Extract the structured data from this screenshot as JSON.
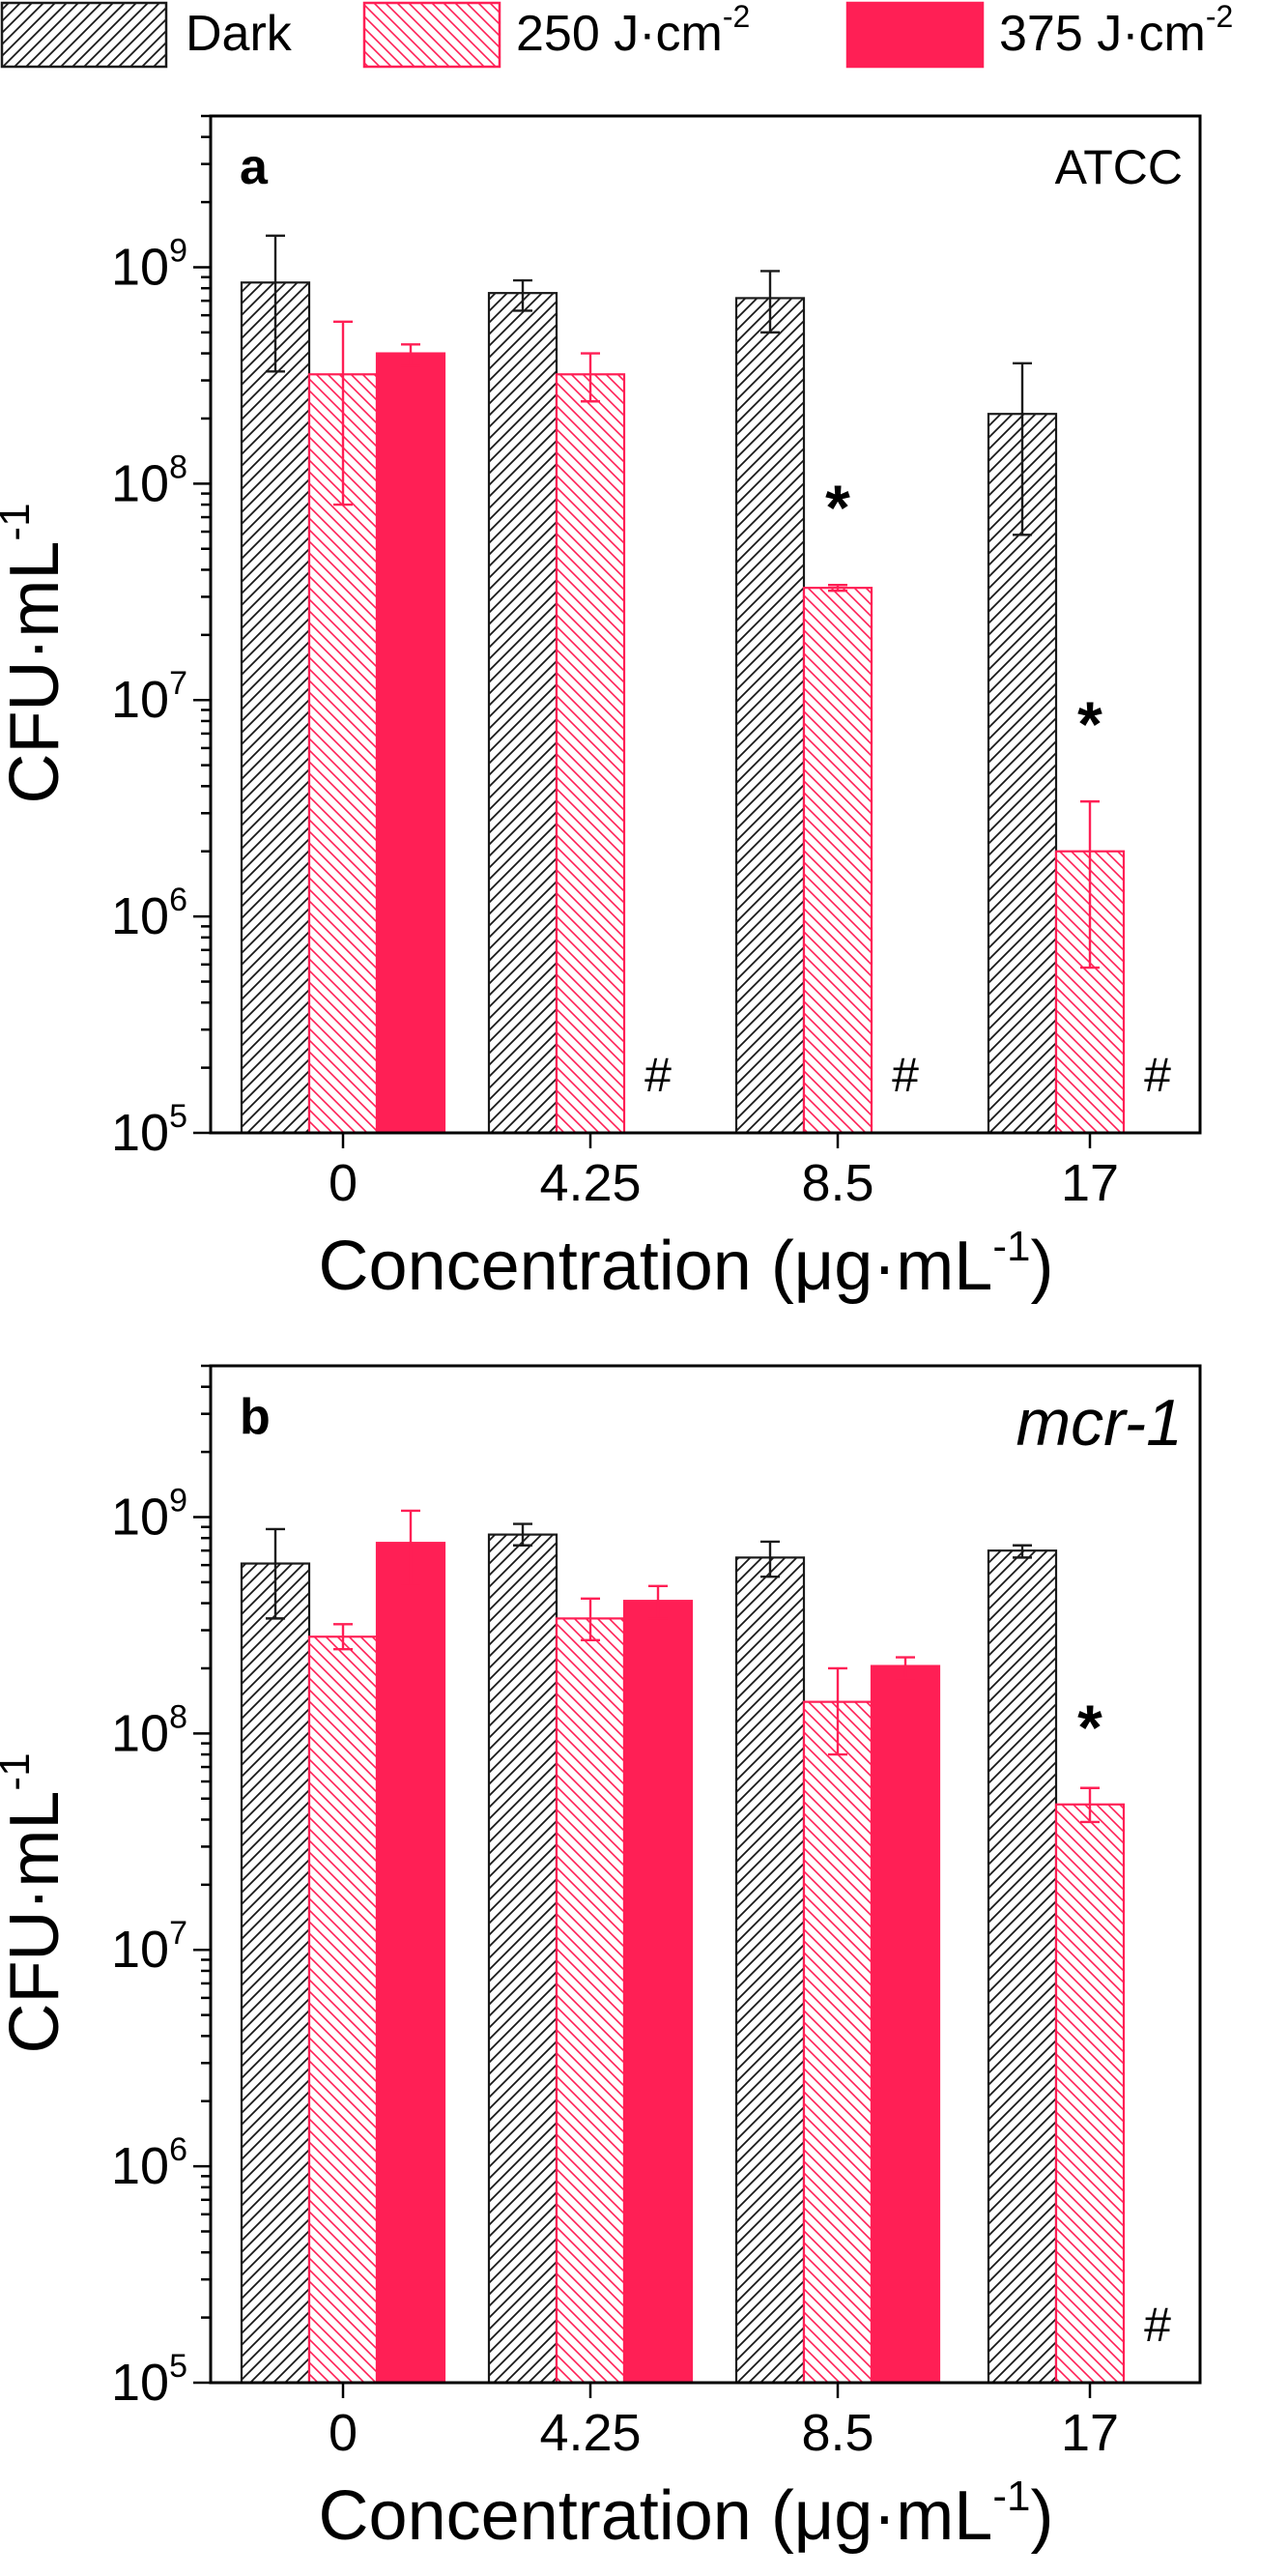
{
  "legend": {
    "items": [
      {
        "label": "Dark",
        "sup": "",
        "style": "hatch-dark"
      },
      {
        "label": "250 J·cm",
        "sup": "-2",
        "style": "hatch-red"
      },
      {
        "label": "375 J·cm",
        "sup": "-2",
        "style": "solid-red"
      }
    ]
  },
  "colors": {
    "dark": "#1a1a1a",
    "red": "#ff1f55"
  },
  "chart_data": [
    {
      "type": "bar",
      "panel_label": "a",
      "panel_title": "ATCC",
      "title_italic": false,
      "xlabel": "Concentration (μg·mL",
      "xlabel_sup": "-1",
      "xlabel_close": ")",
      "ylabel": "CFU·mL",
      "ylabel_sup": "-1",
      "yscale": "log",
      "ylim": [
        100000,
        5000000000
      ],
      "yticks": [
        {
          "value": 100000,
          "base": "10",
          "exp": "5"
        },
        {
          "value": 1000000,
          "base": "10",
          "exp": "6"
        },
        {
          "value": 10000000,
          "base": "10",
          "exp": "7"
        },
        {
          "value": 100000000,
          "base": "10",
          "exp": "8"
        },
        {
          "value": 1000000000,
          "base": "10",
          "exp": "9"
        }
      ],
      "categories": [
        "0",
        "4.25",
        "8.5",
        "17"
      ],
      "series": [
        {
          "name": "Dark",
          "values": [
            850000000,
            760000000,
            720000000,
            210000000
          ],
          "err_low": [
            330000000,
            630000000,
            500000000,
            58000000
          ],
          "err_high": [
            1400000000,
            870000000,
            960000000,
            360000000
          ]
        },
        {
          "name": "250 J·cm-2",
          "values": [
            320000000,
            320000000,
            33000000,
            2000000
          ],
          "err_low": [
            80000000,
            240000000,
            32000000,
            580000
          ],
          "err_high": [
            560000000,
            400000000,
            34000000,
            3400000
          ]
        },
        {
          "name": "375 J·cm-2",
          "values": [
            400000000,
            null,
            null,
            null
          ],
          "err_low": [
            350000000,
            null,
            null,
            null
          ],
          "err_high": [
            440000000,
            null,
            null,
            null
          ]
        }
      ],
      "annotations": [
        {
          "text": "*",
          "category": 2,
          "series": 1,
          "value": 80000000
        },
        {
          "text": "*",
          "category": 3,
          "series": 1,
          "value": 8000000
        },
        {
          "text": "#",
          "category": 1,
          "series": 2,
          "value": 180000
        },
        {
          "text": "#",
          "category": 2,
          "series": 2,
          "value": 180000
        },
        {
          "text": "#",
          "category": 3,
          "series": 2,
          "value": 180000
        }
      ]
    },
    {
      "type": "bar",
      "panel_label": "b",
      "panel_title": "mcr-1",
      "title_italic": true,
      "xlabel": "Concentration (μg·mL",
      "xlabel_sup": "-1",
      "xlabel_close": ")",
      "ylabel": "CFU·mL",
      "ylabel_sup": "-1",
      "yscale": "log",
      "ylim": [
        100000,
        5000000000
      ],
      "yticks": [
        {
          "value": 100000,
          "base": "10",
          "exp": "5"
        },
        {
          "value": 1000000,
          "base": "10",
          "exp": "6"
        },
        {
          "value": 10000000,
          "base": "10",
          "exp": "7"
        },
        {
          "value": 100000000,
          "base": "10",
          "exp": "8"
        },
        {
          "value": 1000000000,
          "base": "10",
          "exp": "9"
        }
      ],
      "categories": [
        "0",
        "4.25",
        "8.5",
        "17"
      ],
      "series": [
        {
          "name": "Dark",
          "values": [
            610000000,
            830000000,
            650000000,
            700000000
          ],
          "err_low": [
            340000000,
            740000000,
            530000000,
            650000000
          ],
          "err_high": [
            880000000,
            930000000,
            770000000,
            740000000
          ]
        },
        {
          "name": "250 J·cm-2",
          "values": [
            280000000,
            340000000,
            140000000,
            47000000
          ],
          "err_low": [
            245000000,
            270000000,
            80000000,
            39000000
          ],
          "err_high": [
            320000000,
            420000000,
            200000000,
            56000000
          ]
        },
        {
          "name": "375 J·cm-2",
          "values": [
            760000000,
            410000000,
            205000000,
            null
          ],
          "err_low": [
            480000000,
            340000000,
            180000000,
            null
          ],
          "err_high": [
            1070000000,
            480000000,
            225000000,
            null
          ]
        }
      ],
      "annotations": [
        {
          "text": "*",
          "category": 3,
          "series": 1,
          "value": 110000000
        },
        {
          "text": "#",
          "category": 3,
          "series": 2,
          "value": 180000
        }
      ]
    }
  ]
}
